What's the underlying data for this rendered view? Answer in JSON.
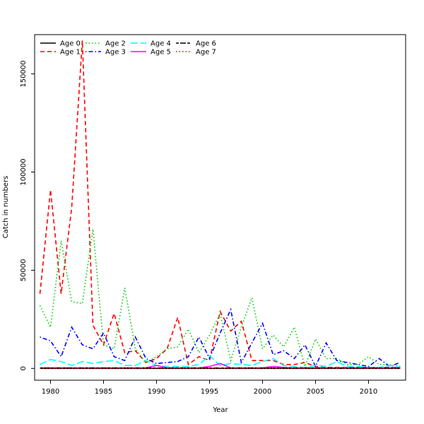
{
  "chart_data": {
    "type": "line",
    "title": "",
    "xlabel": "Year",
    "ylabel": "Catch in numbers",
    "xlim": [
      1978.5,
      2013.5
    ],
    "ylim": [
      -6000,
      170000
    ],
    "xticks": [
      1980,
      1985,
      1990,
      1995,
      2000,
      2005,
      2010
    ],
    "yticks": [
      0,
      50000,
      100000,
      150000
    ],
    "grid": false,
    "legend_position": "top-left",
    "x": [
      1979,
      1980,
      1981,
      1982,
      1983,
      1984,
      1985,
      1986,
      1987,
      1988,
      1989,
      1990,
      1991,
      1992,
      1993,
      1994,
      1995,
      1996,
      1997,
      1998,
      1999,
      2000,
      2001,
      2002,
      2003,
      2004,
      2005,
      2006,
      2007,
      2008,
      2009,
      2010,
      2011,
      2012,
      2013
    ],
    "series": [
      {
        "name": "Age 0",
        "color": "#000000",
        "dash": "solid",
        "values": [
          0,
          0,
          0,
          0,
          0,
          0,
          0,
          0,
          0,
          0,
          0,
          0,
          0,
          0,
          0,
          0,
          0,
          0,
          0,
          0,
          0,
          0,
          0,
          0,
          0,
          0,
          0,
          0,
          0,
          0,
          0,
          0,
          0,
          0,
          0
        ]
      },
      {
        "name": "Age 1",
        "color": "#ff0000",
        "dash": "dashed",
        "values": [
          38000,
          91000,
          38000,
          82000,
          167000,
          22000,
          12000,
          28000,
          8000,
          9000,
          3000,
          5000,
          10000,
          26000,
          2000,
          6000,
          4000,
          29000,
          19000,
          24000,
          4000,
          4000,
          4000,
          2000,
          2000,
          3000,
          1000,
          500,
          500,
          500,
          500,
          500,
          500,
          500,
          500
        ]
      },
      {
        "name": "Age 2",
        "color": "#00cd00",
        "dash": "dotted",
        "values": [
          32000,
          21000,
          65000,
          34000,
          33000,
          71000,
          12000,
          10000,
          41000,
          10000,
          3000,
          6000,
          10000,
          11000,
          20000,
          8000,
          17000,
          28000,
          4000,
          21000,
          36000,
          10000,
          17000,
          11000,
          21000,
          1000,
          15000,
          5000,
          5000,
          2000,
          2000,
          6000,
          2000,
          2000,
          1000
        ]
      },
      {
        "name": "Age 3",
        "color": "#0000ff",
        "dash": "dashdot",
        "values": [
          16000,
          14000,
          6000,
          21000,
          12000,
          10000,
          18000,
          6000,
          4000,
          16000,
          5000,
          2500,
          3000,
          3500,
          6000,
          16000,
          5000,
          18000,
          30000,
          3000,
          13000,
          23000,
          7000,
          9000,
          5000,
          12000,
          1000,
          13000,
          4000,
          3000,
          2000,
          1000,
          5000,
          1000,
          3000
        ]
      },
      {
        "name": "Age 4",
        "color": "#00ffff",
        "dash": "longdash",
        "values": [
          2000,
          4500,
          3500,
          1500,
          3500,
          2500,
          3500,
          4000,
          1500,
          1500,
          4000,
          1500,
          1000,
          1000,
          1000,
          2000,
          6500,
          1500,
          2500,
          2000,
          1500,
          3500,
          5000,
          1500,
          1000,
          500,
          1500,
          1000,
          3500,
          1000,
          1000,
          500,
          500,
          1500,
          500
        ]
      },
      {
        "name": "Age 5",
        "color": "#ff00ff",
        "dash": "solid",
        "values": [
          300,
          300,
          300,
          300,
          300,
          300,
          300,
          300,
          300,
          300,
          300,
          1500,
          300,
          300,
          300,
          300,
          1000,
          2500,
          300,
          300,
          300,
          300,
          1000,
          500,
          300,
          300,
          300,
          300,
          300,
          300,
          300,
          300,
          300,
          300,
          300
        ]
      },
      {
        "name": "Age 6",
        "color": "#000000",
        "dash": "twodash",
        "values": [
          200,
          200,
          200,
          200,
          200,
          200,
          200,
          200,
          200,
          200,
          200,
          200,
          200,
          200,
          200,
          200,
          200,
          200,
          200,
          200,
          200,
          200,
          200,
          200,
          200,
          200,
          200,
          200,
          200,
          200,
          200,
          200,
          200,
          200,
          200
        ]
      },
      {
        "name": "Age 7",
        "color": "#ff0000",
        "dash": "dotted",
        "values": [
          100,
          100,
          100,
          100,
          100,
          100,
          100,
          100,
          100,
          100,
          100,
          100,
          100,
          100,
          100,
          100,
          100,
          100,
          100,
          100,
          100,
          100,
          100,
          100,
          100,
          100,
          100,
          100,
          100,
          100,
          100,
          100,
          100,
          100,
          100
        ]
      }
    ]
  }
}
